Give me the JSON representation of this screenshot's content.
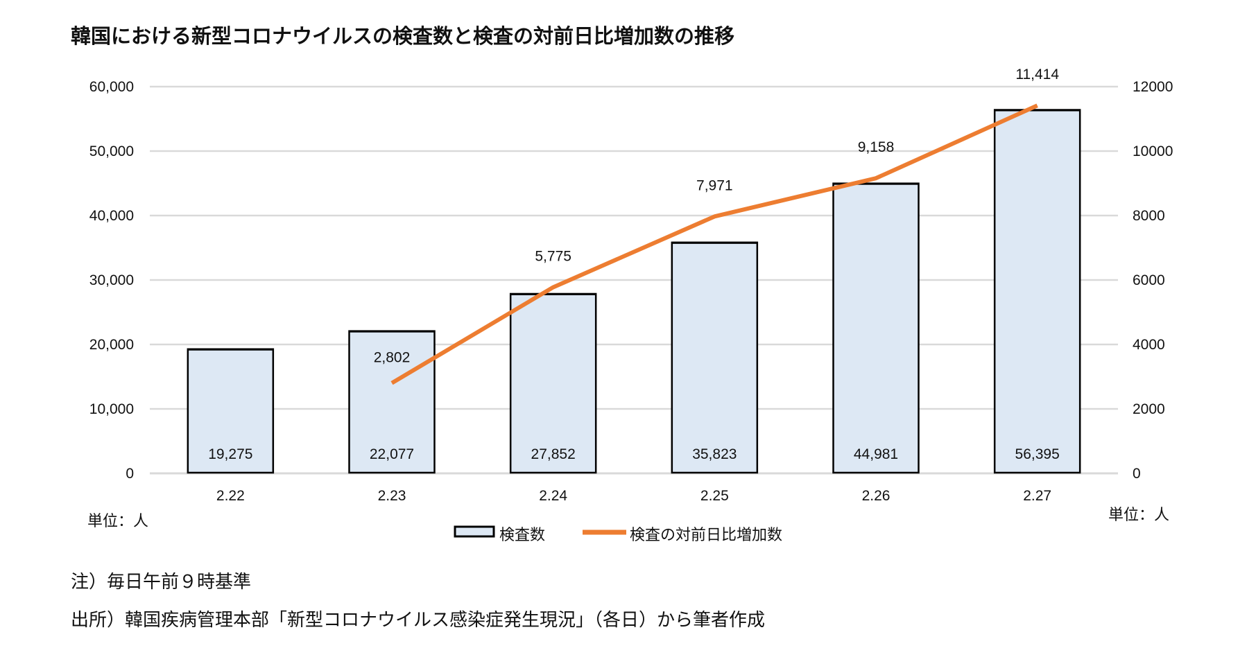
{
  "chart_data": {
    "type": "bar+line",
    "title": "韓国における新型コロナウイルスの検査数と検査の対前日比増加数の推移",
    "categories": [
      "2.22",
      "2.23",
      "2.24",
      "2.25",
      "2.26",
      "2.27"
    ],
    "series": [
      {
        "name": "検査数",
        "type": "bar",
        "axis": "left",
        "values": [
          19275,
          22077,
          27852,
          35823,
          44981,
          56395
        ],
        "labels": [
          "19,275",
          "22,077",
          "27,852",
          "35,823",
          "44,981",
          "56,395"
        ],
        "color": "#dde8f4",
        "stroke": "#000000"
      },
      {
        "name": "検査の対前日比増加数",
        "type": "line",
        "axis": "right",
        "values": [
          null,
          2802,
          5775,
          7971,
          9158,
          11414
        ],
        "labels": [
          "",
          "2,802",
          "5,775",
          "7,971",
          "9,158",
          "11,414"
        ],
        "color": "#ed7d31"
      }
    ],
    "y_left": {
      "ylim": [
        0,
        60000
      ],
      "ticks": [
        "0",
        "10,000",
        "20,000",
        "30,000",
        "40,000",
        "50,000",
        "60,000"
      ],
      "unit": "単位：人"
    },
    "y_right": {
      "ylim": [
        0,
        12000
      ],
      "ticks": [
        "0",
        "2000",
        "4000",
        "6000",
        "8000",
        "10000",
        "12000"
      ],
      "unit": "単位：人"
    },
    "grid": true,
    "legend": "bottom"
  },
  "notes": {
    "note": "注）毎日午前９時基準",
    "source": "出所）韓国疾病管理本部「新型コロナウイルス感染症発生現況」（各日）から筆者作成"
  }
}
